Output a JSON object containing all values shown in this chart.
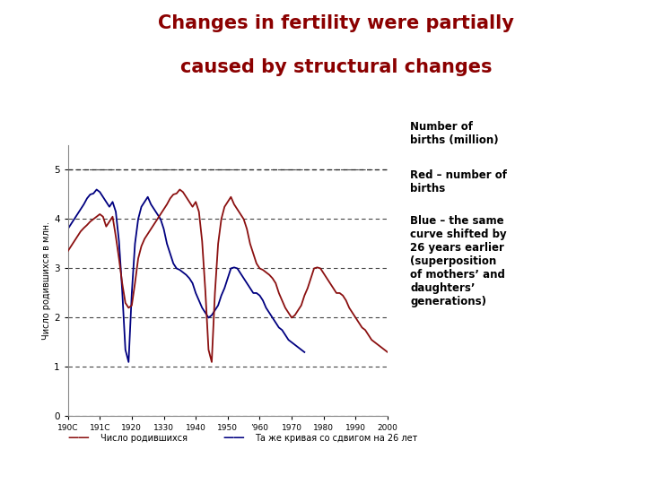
{
  "title_line1": "Changes in fertility were partially",
  "title_line2": "caused by structural changes",
  "title_color": "#8B0000",
  "bg_color": "#FFFFFF",
  "ylabel": "Число родившихся в млн.",
  "legend_red": "Число родившихся",
  "legend_blue": "Та же кривая со сдвигом на 26 лет",
  "red_color": "#8B1010",
  "blue_color": "#000080",
  "left_bar_color": "#7B0000",
  "bottom_bar_color": "#A0A0A0",
  "annotation1": "Number of\nbirths (million)",
  "annotation2": "Red – number of\nbirths",
  "annotation3": "Blue – the same\ncurve shifted by\n26 years earlier\n(superposition\nof mothers’ and\ndaughters’\ngenerations)",
  "xlim": [
    1900,
    2000
  ],
  "ylim": [
    0,
    5.5
  ],
  "yticks": [
    0,
    1,
    2,
    3,
    4,
    5
  ],
  "red_x": [
    1900,
    1901,
    1902,
    1903,
    1904,
    1905,
    1906,
    1907,
    1908,
    1909,
    1910,
    1911,
    1912,
    1913,
    1914,
    1915,
    1916,
    1917,
    1918,
    1919,
    1920,
    1921,
    1922,
    1923,
    1924,
    1925,
    1926,
    1927,
    1928,
    1929,
    1930,
    1931,
    1932,
    1933,
    1934,
    1935,
    1936,
    1937,
    1938,
    1939,
    1940,
    1941,
    1942,
    1943,
    1944,
    1945,
    1946,
    1947,
    1948,
    1949,
    1950,
    1951,
    1952,
    1953,
    1954,
    1955,
    1956,
    1957,
    1958,
    1959,
    1960,
    1961,
    1962,
    1963,
    1964,
    1965,
    1966,
    1967,
    1968,
    1969,
    1970,
    1971,
    1972,
    1973,
    1974,
    1975,
    1976,
    1977,
    1978,
    1979,
    1980,
    1981,
    1982,
    1983,
    1984,
    1985,
    1986,
    1987,
    1988,
    1989,
    1990,
    1991,
    1992,
    1993,
    1994,
    1995,
    1996,
    1997,
    1998,
    1999,
    2000
  ],
  "red_y": [
    3.35,
    3.45,
    3.55,
    3.65,
    3.75,
    3.82,
    3.88,
    3.95,
    4.0,
    4.05,
    4.1,
    4.05,
    3.85,
    3.95,
    4.05,
    3.65,
    3.2,
    2.7,
    2.3,
    2.2,
    2.25,
    2.7,
    3.2,
    3.45,
    3.6,
    3.7,
    3.8,
    3.9,
    4.0,
    4.1,
    4.2,
    4.3,
    4.42,
    4.5,
    4.52,
    4.6,
    4.55,
    4.45,
    4.35,
    4.25,
    4.35,
    4.15,
    3.55,
    2.55,
    1.35,
    1.1,
    2.5,
    3.5,
    4.0,
    4.25,
    4.35,
    4.45,
    4.3,
    4.2,
    4.1,
    4.0,
    3.8,
    3.5,
    3.3,
    3.1,
    3.0,
    2.97,
    2.92,
    2.87,
    2.8,
    2.7,
    2.5,
    2.35,
    2.2,
    2.1,
    2.0,
    2.05,
    2.15,
    2.25,
    2.45,
    2.6,
    2.8,
    3.0,
    3.02,
    3.0,
    2.9,
    2.8,
    2.7,
    2.6,
    2.5,
    2.5,
    2.45,
    2.35,
    2.2,
    2.1,
    2.0,
    1.9,
    1.8,
    1.75,
    1.65,
    1.55,
    1.5,
    1.45,
    1.4,
    1.35,
    1.3
  ]
}
